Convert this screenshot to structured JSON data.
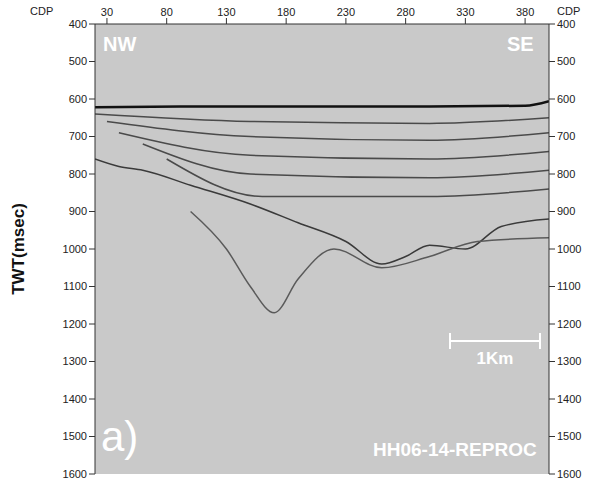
{
  "chart_data": {
    "type": "line",
    "xlabel": "CDP",
    "ylabel": "TWT(msec)",
    "xlim": [
      20,
      400
    ],
    "xticks": [
      30,
      80,
      130,
      180,
      230,
      280,
      330,
      380
    ],
    "ylim": [
      400,
      1600
    ],
    "yticks": [
      400,
      500,
      600,
      700,
      800,
      900,
      1000,
      1100,
      1200,
      1300,
      1400,
      1500,
      1600
    ],
    "grid": false,
    "annotations": [
      "NW",
      "SE",
      "1Km",
      "a)",
      "HH06-14-REPROC"
    ],
    "series": [
      {
        "color": "#111111",
        "x": [
          20,
          100,
          300,
          380,
          400
        ],
        "values": [
          622,
          620,
          620,
          618,
          606
        ]
      },
      {
        "color": "#4a4a4a",
        "x": [
          20,
          150,
          300,
          400
        ],
        "values": [
          640,
          660,
          665,
          650
        ]
      },
      {
        "color": "#4a4a4a",
        "x": [
          30,
          150,
          300,
          400
        ],
        "values": [
          660,
          700,
          710,
          690
        ]
      },
      {
        "color": "#4a4a4a",
        "x": [
          40,
          150,
          300,
          400
        ],
        "values": [
          690,
          750,
          760,
          740
        ]
      },
      {
        "color": "#4a4a4a",
        "x": [
          60,
          150,
          300,
          400
        ],
        "values": [
          720,
          800,
          810,
          790
        ]
      },
      {
        "color": "#4a4a4a",
        "x": [
          80,
          160,
          300,
          400
        ],
        "values": [
          760,
          860,
          860,
          840
        ]
      },
      {
        "color": "#3a3a3a",
        "x": [
          20,
          40,
          60,
          100,
          150,
          190,
          230,
          260,
          280,
          300,
          330,
          360,
          400
        ],
        "values": [
          760,
          780,
          790,
          830,
          880,
          930,
          980,
          1040,
          1020,
          990,
          1000,
          940,
          920
        ]
      },
      {
        "color": "#5a5a5a",
        "x": [
          100,
          130,
          150,
          170,
          190,
          220,
          260,
          300,
          340,
          400
        ],
        "values": [
          900,
          1000,
          1100,
          1170,
          1080,
          1000,
          1050,
          1020,
          980,
          970
        ]
      }
    ]
  }
}
